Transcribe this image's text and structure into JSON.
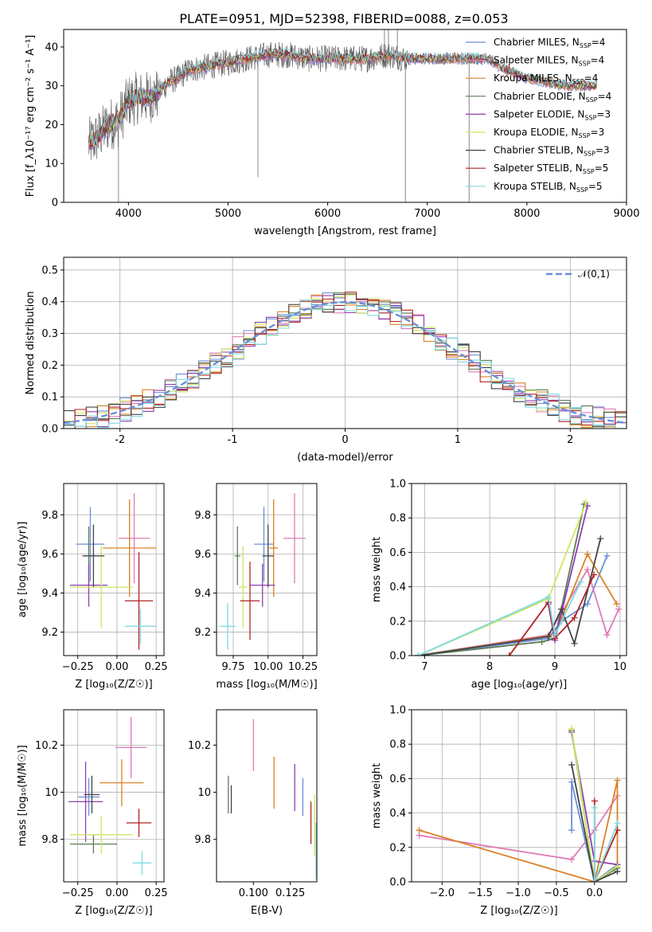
{
  "title": "PLATE=0951, MJD=52398, FIBERID=0088, z=0.053",
  "colors": [
    "#6a8fd8",
    "#e07bb7",
    "#d98227",
    "#5b7a56",
    "#8c3fb3",
    "#cfe660",
    "#444444",
    "#b22222",
    "#80d9e0"
  ],
  "chart_data": [
    {
      "id": "spectrum",
      "type": "line",
      "xlabel": "wavelength [Angstrom, rest frame]",
      "ylabel": "Flux [f_λ10⁻¹⁷ erg cm⁻² s⁻¹ A⁻¹]",
      "xlim": [
        3350,
        9000
      ],
      "ylim": [
        0,
        44.5
      ],
      "xticks": [
        4000,
        5000,
        6000,
        7000,
        8000,
        9000
      ],
      "yticks": [
        0,
        10,
        20,
        30,
        40
      ],
      "grid": false,
      "legend_position": "top-right",
      "legend": [
        "Chabrier MILES, N_SSP=4",
        "Salpeter MILES, N_SSP=4",
        "Kroupa MILES, N_SSP=4",
        "Chabrier ELODIE, N_SSP=4",
        "Salpeter ELODIE, N_SSP=3",
        "Kroupa ELODIE, N_SSP=3",
        "Chabrier STELIB, N_SSP=3",
        "Salpeter STELIB, N_SSP=5",
        "Kroupa STELIB, N_SSP=5"
      ],
      "continuum_x": [
        3600,
        3700,
        3800,
        3900,
        4000,
        4100,
        4200,
        4300,
        4400,
        4500,
        4600,
        4800,
        5000,
        5200,
        5400,
        5600,
        5800,
        6000,
        6200,
        6400,
        6600,
        6800,
        7000,
        7200,
        7400,
        7600,
        7800,
        8000,
        8200,
        8400,
        8600,
        8700
      ],
      "continuum_y": [
        15,
        17,
        20,
        21,
        26,
        27,
        27,
        28,
        31,
        32,
        34,
        35,
        36,
        37,
        38,
        38,
        37,
        37,
        37,
        37,
        38,
        37,
        37,
        37,
        37,
        37,
        34,
        32,
        31,
        30,
        30,
        30
      ],
      "spikes": [
        [
          3900,
          0
        ],
        [
          5300,
          6.5
        ],
        [
          6780,
          0
        ],
        [
          7420,
          0
        ],
        [
          6570,
          44.5
        ],
        [
          6610,
          44.5
        ],
        [
          6700,
          44.5
        ]
      ]
    },
    {
      "id": "residuals",
      "type": "histogram",
      "xlabel": "(data-model)/error",
      "ylabel": "Normed distribution",
      "xlim": [
        -2.5,
        2.5
      ],
      "ylim": [
        0,
        0.54
      ],
      "xticks": [
        -2,
        -1,
        0,
        1,
        2
      ],
      "yticks": [
        0.0,
        0.1,
        0.2,
        0.3,
        0.4,
        0.5
      ],
      "grid": true,
      "legend": [
        "𝒩(0,1)"
      ],
      "legend_position": "top-right",
      "bin_width": 0.1,
      "bin_start": -2.5
    },
    {
      "id": "age_vs_Z",
      "type": "errorbar",
      "xlabel": "Z [log₁₀(Z/Z☉)]",
      "ylabel": "age  [log₁₀(age/yr)]",
      "xlim": [
        -0.34,
        0.3
      ],
      "ylim": [
        9.08,
        9.96
      ],
      "xticks": [
        -0.25,
        0.0,
        0.25
      ],
      "xticklabels": [
        "−0.25",
        "0.00",
        "0.25"
      ],
      "yticks": [
        9.2,
        9.4,
        9.6,
        9.8
      ],
      "grid": true,
      "points": [
        {
          "x": -0.17,
          "y": 9.65,
          "xerr": 0.09,
          "yerr": 0.19
        },
        {
          "x": 0.11,
          "y": 9.68,
          "xerr": 0.1,
          "yerr": 0.23
        },
        {
          "x": 0.08,
          "y": 9.63,
          "xerr": 0.17,
          "yerr": 0.25
        },
        {
          "x": -0.18,
          "y": 9.59,
          "xerr": 0.04,
          "yerr": 0.15
        },
        {
          "x": -0.18,
          "y": 9.44,
          "xerr": 0.12,
          "yerr": 0.11
        },
        {
          "x": -0.1,
          "y": 9.43,
          "xerr": 0.2,
          "yerr": 0.21
        },
        {
          "x": -0.15,
          "y": 9.59,
          "xerr": 0.07,
          "yerr": 0.16
        },
        {
          "x": 0.14,
          "y": 9.36,
          "xerr": 0.09,
          "yerr": 0.25
        },
        {
          "x": 0.15,
          "y": 9.23,
          "xerr": 0.1,
          "yerr": 0.09
        }
      ]
    },
    {
      "id": "age_vs_mass",
      "type": "errorbar",
      "xlabel": "mass [log₁₀(M/M☉)]",
      "ylabel": "",
      "xlim": [
        9.63,
        10.35
      ],
      "ylim": [
        9.08,
        9.96
      ],
      "xticks": [
        9.75,
        10.0,
        10.25
      ],
      "xticklabels": [
        "9.75",
        "10.00",
        "10.25"
      ],
      "yticks": [
        9.2,
        9.4,
        9.6,
        9.8
      ],
      "grid": true,
      "points": [
        {
          "x": 9.97,
          "y": 9.65,
          "xerr": 0.07,
          "yerr": 0.19
        },
        {
          "x": 10.19,
          "y": 9.68,
          "xerr": 0.08,
          "yerr": 0.23
        },
        {
          "x": 10.04,
          "y": 9.63,
          "xerr": 0.03,
          "yerr": 0.25
        },
        {
          "x": 9.78,
          "y": 9.59,
          "xerr": 0.02,
          "yerr": 0.15
        },
        {
          "x": 9.96,
          "y": 9.44,
          "xerr": 0.09,
          "yerr": 0.11
        },
        {
          "x": 9.82,
          "y": 9.43,
          "xerr": 0.03,
          "yerr": 0.21
        },
        {
          "x": 10.0,
          "y": 9.59,
          "xerr": 0.04,
          "yerr": 0.16
        },
        {
          "x": 9.87,
          "y": 9.36,
          "xerr": 0.07,
          "yerr": 0.2
        },
        {
          "x": 9.71,
          "y": 9.23,
          "xerr": 0.06,
          "yerr": 0.12
        }
      ]
    },
    {
      "id": "massweight_vs_age",
      "type": "line",
      "xlabel": "age  [log₁₀(age/yr)]",
      "ylabel": "mass weight",
      "xlim": [
        6.8,
        10.1
      ],
      "ylim": [
        0,
        1.0
      ],
      "xticks": [
        7,
        8,
        9,
        10
      ],
      "yticks": [
        0.0,
        0.2,
        0.4,
        0.6,
        0.8,
        1.0
      ],
      "grid": true,
      "series": [
        {
          "x": [
            6.9,
            8.9,
            9.1,
            9.5,
            9.8
          ],
          "y": [
            0.0,
            0.1,
            0.2,
            0.3,
            0.58
          ]
        },
        {
          "x": [
            6.9,
            8.9,
            9.5,
            9.8,
            9.98
          ],
          "y": [
            0.0,
            0.12,
            0.5,
            0.12,
            0.27
          ]
        },
        {
          "x": [
            6.9,
            9.0,
            9.5,
            9.95
          ],
          "y": [
            0.0,
            0.12,
            0.59,
            0.3
          ]
        },
        {
          "x": [
            6.9,
            8.8,
            9.0,
            9.45
          ],
          "y": [
            0.0,
            0.08,
            0.1,
            0.88
          ]
        },
        {
          "x": [
            8.9,
            9.0,
            9.5
          ],
          "y": [
            0.3,
            0.09,
            0.87
          ]
        },
        {
          "x": [
            6.9,
            8.9,
            9.48
          ],
          "y": [
            0.0,
            0.33,
            0.89
          ]
        },
        {
          "x": [
            6.9,
            8.9,
            9.1,
            9.3,
            9.7
          ],
          "y": [
            0.0,
            0.11,
            0.27,
            0.07,
            0.68
          ]
        },
        {
          "x": [
            8.3,
            8.9,
            9.0,
            9.3,
            9.6
          ],
          "y": [
            0.0,
            0.31,
            0.1,
            0.22,
            0.47
          ]
        },
        {
          "x": [
            6.9,
            8.9,
            9.0,
            9.4
          ],
          "y": [
            0.0,
            0.34,
            0.12,
            0.43
          ]
        }
      ]
    },
    {
      "id": "mass_vs_Z",
      "type": "errorbar",
      "xlabel": "Z [log₁₀(Z/Z☉)]",
      "ylabel": "mass [log₁₀(M/M☉)]",
      "xlim": [
        -0.34,
        0.3
      ],
      "ylim": [
        9.62,
        10.35
      ],
      "xticks": [
        -0.25,
        0.0,
        0.25
      ],
      "xticklabels": [
        "−0.25",
        "0.00",
        "0.25"
      ],
      "yticks": [
        9.8,
        10.0,
        10.2
      ],
      "grid": true,
      "points": [
        {
          "x": -0.18,
          "y": 9.98,
          "xerr": 0.07,
          "yerr": 0.08
        },
        {
          "x": 0.09,
          "y": 10.19,
          "xerr": 0.1,
          "yerr": 0.13
        },
        {
          "x": 0.03,
          "y": 10.04,
          "xerr": 0.14,
          "yerr": 0.1
        },
        {
          "x": -0.15,
          "y": 9.78,
          "xerr": 0.15,
          "yerr": 0.04
        },
        {
          "x": -0.2,
          "y": 9.96,
          "xerr": 0.11,
          "yerr": 0.17
        },
        {
          "x": -0.1,
          "y": 9.82,
          "xerr": 0.2,
          "yerr": 0.08
        },
        {
          "x": -0.16,
          "y": 9.99,
          "xerr": 0.05,
          "yerr": 0.08
        },
        {
          "x": 0.14,
          "y": 9.87,
          "xerr": 0.08,
          "yerr": 0.06
        },
        {
          "x": 0.16,
          "y": 9.7,
          "xerr": 0.06,
          "yerr": 0.05
        }
      ]
    },
    {
      "id": "mass_vs_ebv",
      "type": "errorbar",
      "xlabel": "E(B-V)",
      "ylabel": "",
      "xlim": [
        0.075,
        0.143
      ],
      "ylim": [
        9.62,
        10.35
      ],
      "xticks": [
        0.1,
        0.125
      ],
      "xticklabels": [
        "0.100",
        "0.125"
      ],
      "yticks": [
        9.8,
        10.0,
        10.2
      ],
      "grid": false,
      "points": [
        {
          "x": 0.1335,
          "y": 9.98,
          "xerr": 0,
          "yerr": 0.08
        },
        {
          "x": 0.1,
          "y": 10.2,
          "xerr": 0,
          "yerr": 0.11
        },
        {
          "x": 0.114,
          "y": 10.04,
          "xerr": 0,
          "yerr": 0.11
        },
        {
          "x": 0.083,
          "y": 9.99,
          "xerr": 0,
          "yerr": 0.08
        },
        {
          "x": 0.128,
          "y": 10.02,
          "xerr": 0,
          "yerr": 0.1
        },
        {
          "x": 0.1415,
          "y": 9.86,
          "xerr": 0,
          "yerr": 0.13
        },
        {
          "x": 0.085,
          "y": 9.97,
          "xerr": 0,
          "yerr": 0.06
        },
        {
          "x": 0.139,
          "y": 9.87,
          "xerr": 0,
          "yerr": 0.09
        },
        {
          "x": 0.1425,
          "y": 9.75,
          "xerr": 0,
          "yerr": 0.12
        }
      ]
    },
    {
      "id": "massweight_vs_Z",
      "type": "line",
      "xlabel": "Z [log₁₀(Z/Z☉)]",
      "ylabel": "mass weight",
      "xlim": [
        -2.4,
        0.42
      ],
      "ylim": [
        0,
        1.0
      ],
      "xticks": [
        -2.0,
        -1.5,
        -1.0,
        -0.5,
        0.0
      ],
      "xticklabels": [
        "−2.0",
        "−1.5",
        "−1.0",
        "−0.5",
        "0.0"
      ],
      "yticks": [
        0.0,
        0.2,
        0.4,
        0.6,
        0.8,
        1.0
      ],
      "grid": true,
      "series": [
        {
          "x": [
            -0.3,
            -0.3,
            0.0,
            0.3
          ],
          "y": [
            0.3,
            0.58,
            0.0,
            0.1
          ]
        },
        {
          "x": [
            -2.3,
            -0.3,
            0.0,
            0.3
          ],
          "y": [
            0.27,
            0.13,
            0.3,
            0.5
          ]
        },
        {
          "x": [
            -2.3,
            0.0,
            0.3,
            0.3
          ],
          "y": [
            0.3,
            0.0,
            0.59,
            0.1
          ]
        },
        {
          "x": [
            -0.3,
            0.0,
            0.3
          ],
          "y": [
            0.88,
            0.0,
            0.08
          ]
        },
        {
          "x": [
            -0.3,
            0.0,
            0.3
          ],
          "y": [
            0.87,
            0.12,
            0.1
          ]
        },
        {
          "x": [
            -0.3,
            0.0,
            0.3
          ],
          "y": [
            0.89,
            0.0,
            0.09
          ]
        },
        {
          "x": [
            -0.3,
            0.0,
            0.3
          ],
          "y": [
            0.68,
            0.0,
            0.06
          ]
        },
        {
          "x": [
            0.0,
            0.0,
            0.3
          ],
          "y": [
            0.47,
            0.0,
            0.3
          ]
        },
        {
          "x": [
            0.0,
            0.0,
            0.3
          ],
          "y": [
            0.43,
            0.0,
            0.34
          ]
        }
      ]
    }
  ]
}
